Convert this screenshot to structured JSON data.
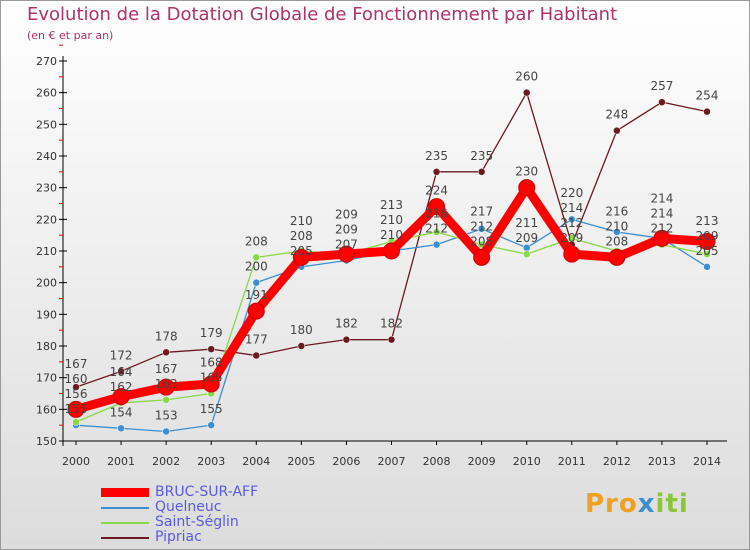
{
  "chart_data": {
    "type": "line",
    "title": "Evolution de la Dotation Globale de Fonctionnement par Habitant",
    "subtitle": "(en € et par an)",
    "x": [
      "2000",
      "2001",
      "2002",
      "2003",
      "2004",
      "2005",
      "2006",
      "2007",
      "2008",
      "2009",
      "2010",
      "2011",
      "2012",
      "2013",
      "2014"
    ],
    "ylim": [
      150,
      270
    ],
    "yticks": [
      150,
      160,
      170,
      180,
      190,
      200,
      210,
      220,
      230,
      240,
      250,
      260,
      270
    ],
    "legend_position": "bottom-left",
    "series": [
      {
        "name": "BRUC-SUR-AFF",
        "color": "#ff0000",
        "values": [
          160,
          164,
          167,
          168,
          191,
          208,
          209,
          210,
          224,
          208,
          230,
          209,
          208,
          214,
          213
        ]
      },
      {
        "name": "Quelneuc",
        "color": "#3b8fd0",
        "values": [
          155,
          154,
          153,
          155,
          200,
          205,
          207,
          210,
          212,
          217,
          211,
          220,
          216,
          214,
          205
        ]
      },
      {
        "name": "Saint-Séglin",
        "color": "#88d848",
        "values": [
          156,
          162,
          163,
          165,
          208,
          210,
          209,
          213,
          216,
          212,
          209,
          214,
          210,
          212,
          209
        ]
      },
      {
        "name": "Pipriac",
        "color": "#6b1a1f",
        "values": [
          167,
          172,
          178,
          179,
          177,
          180,
          182,
          182,
          235,
          235,
          260,
          212,
          248,
          257,
          254
        ]
      }
    ]
  },
  "logo": "Proxiti"
}
